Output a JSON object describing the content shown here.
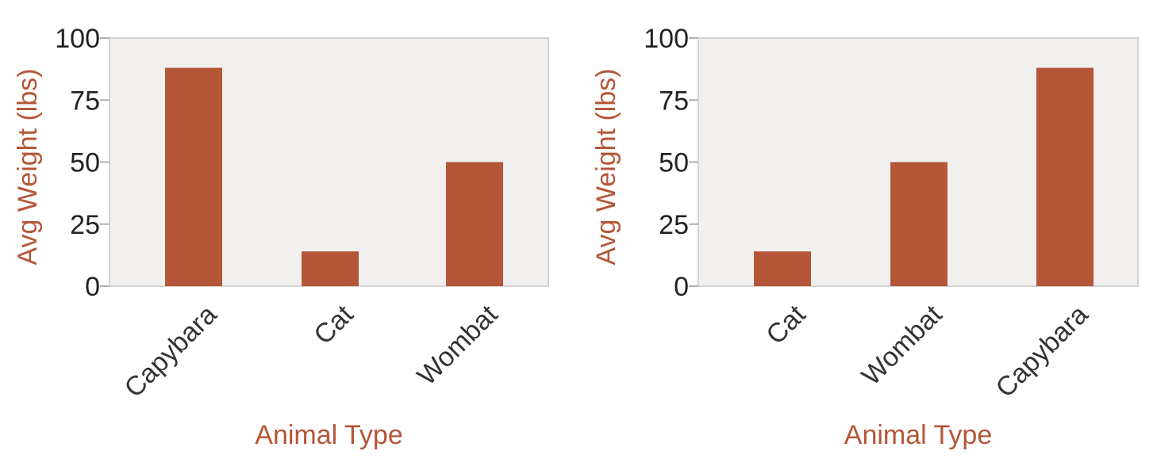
{
  "chart_data": [
    {
      "type": "bar",
      "categories": [
        "Capybara",
        "Cat",
        "Wombat"
      ],
      "values": [
        88,
        14,
        50
      ],
      "xlabel": "Animal Type",
      "ylabel": "Avg Weight (lbs)",
      "ylim": [
        0,
        100
      ],
      "yticks": [
        0,
        25,
        50,
        75,
        100
      ],
      "grid": false,
      "colors": {
        "bar": "#b45637",
        "background": "#f1f0ef",
        "axis_title": "#b45637"
      }
    },
    {
      "type": "bar",
      "categories": [
        "Cat",
        "Wombat",
        "Capybara"
      ],
      "values": [
        14,
        50,
        88
      ],
      "xlabel": "Animal Type",
      "ylabel": "Avg Weight (lbs)",
      "ylim": [
        0,
        100
      ],
      "yticks": [
        0,
        25,
        50,
        75,
        100
      ],
      "grid": false,
      "colors": {
        "bar": "#b45637",
        "background": "#f1f0ef",
        "axis_title": "#b45637"
      }
    }
  ]
}
